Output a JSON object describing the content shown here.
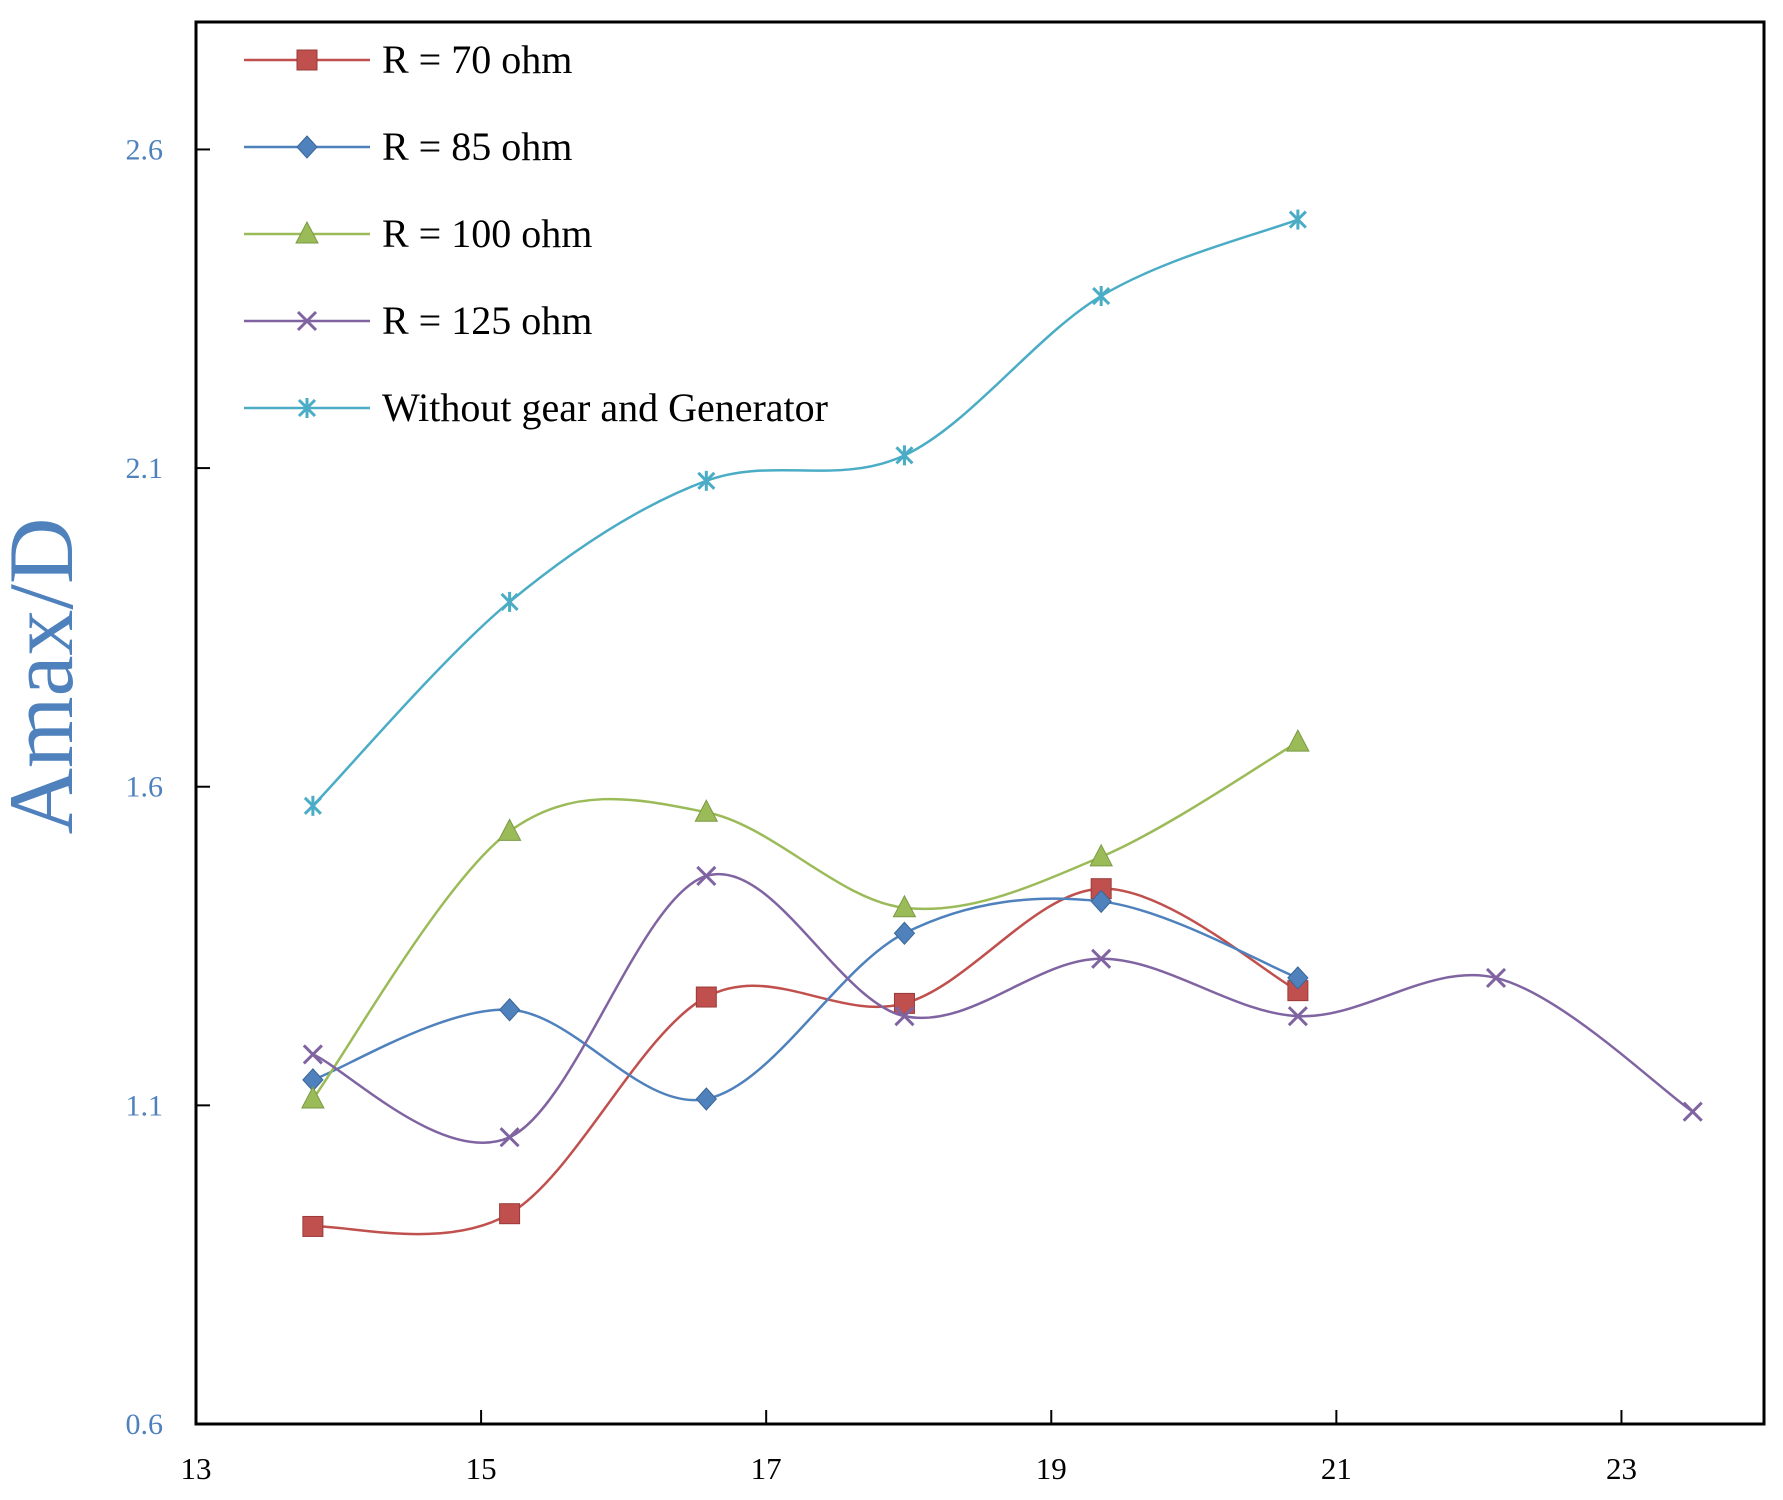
{
  "colors": {
    "axis": "#000000",
    "ytick_label": "#4F81BD",
    "ylabel": "#4F81BD"
  },
  "chart_data": {
    "type": "line",
    "title": "",
    "xlabel": "",
    "ylabel": "Amax/D",
    "xlim": [
      13,
      24
    ],
    "ylim": [
      0.6,
      2.8
    ],
    "xticks": [
      13,
      15,
      17,
      19,
      21,
      23
    ],
    "yticks": [
      0.6,
      1.1,
      1.6,
      2.1,
      2.6
    ],
    "xtick_labels": [
      "13",
      "15",
      "17",
      "19",
      "21",
      "23"
    ],
    "ytick_labels": [
      "0.6",
      "1.1",
      "1.6",
      "2.1",
      "2.6"
    ],
    "grid": false,
    "legend_position": "top-left",
    "smooth": true,
    "series": [
      {
        "name": "R = 70 ohm",
        "color": "#C0504D",
        "marker": "square",
        "x": [
          13.82,
          15.2,
          16.58,
          17.97,
          19.35,
          20.73
        ],
        "y": [
          0.91,
          0.93,
          1.27,
          1.26,
          1.44,
          1.28
        ]
      },
      {
        "name": "R = 85 ohm",
        "color": "#4F81BD",
        "marker": "diamond",
        "x": [
          13.82,
          15.2,
          16.58,
          17.97,
          19.35,
          20.73
        ],
        "y": [
          1.14,
          1.25,
          1.11,
          1.37,
          1.42,
          1.3
        ]
      },
      {
        "name": "R = 100 ohm",
        "color": "#9BBB59",
        "marker": "triangle",
        "x": [
          13.82,
          15.2,
          16.58,
          17.97,
          19.35,
          20.73
        ],
        "y": [
          1.11,
          1.53,
          1.56,
          1.41,
          1.49,
          1.67
        ]
      },
      {
        "name": "R = 125 ohm",
        "color": "#8064A2",
        "marker": "x",
        "x": [
          13.82,
          15.2,
          16.58,
          17.97,
          19.35,
          20.73,
          22.12,
          23.5
        ],
        "y": [
          1.18,
          1.05,
          1.46,
          1.24,
          1.33,
          1.24,
          1.3,
          1.09
        ]
      },
      {
        "name": "Without gear and Generator",
        "color": "#4BACC6",
        "marker": "star",
        "x": [
          13.82,
          15.2,
          16.58,
          17.97,
          19.35,
          20.73
        ],
        "y": [
          1.57,
          1.89,
          2.08,
          2.12,
          2.37,
          2.49
        ]
      }
    ]
  }
}
